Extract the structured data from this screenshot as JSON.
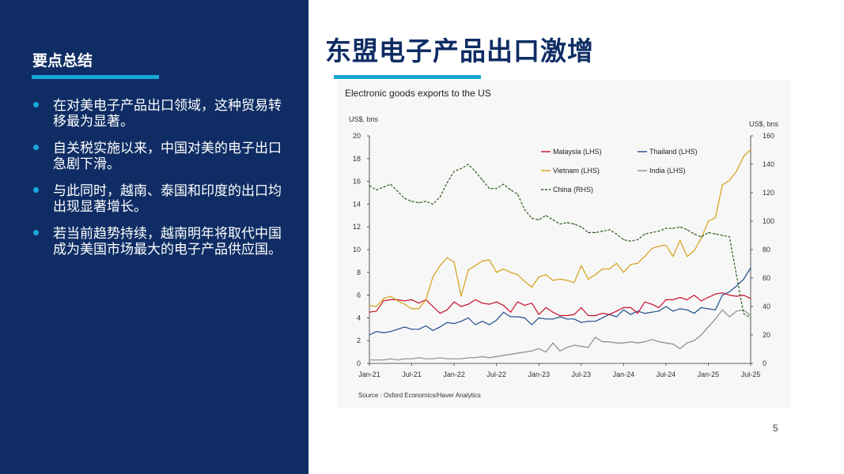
{
  "sidebar": {
    "title": "要点总结",
    "bullets": [
      "在对美电子产品出口领域，这种贸易转移最为显著。",
      "自关税实施以来，中国对美的电子出口急剧下滑。",
      "与此同时，越南、泰国和印度的出口均出现显著增长。",
      "若当前趋势持续，越南明年将取代中国成为美国市场最大的电子产品供应国。"
    ]
  },
  "header": {
    "title": "东盟电子产品出口激增"
  },
  "page_number": "5",
  "colors": {
    "sidebar_bg": "#0f2d64",
    "accent": "#17a7d8",
    "malaysia": "#c8102e",
    "thailand": "#1f4e8c",
    "vietnam": "#d4a017",
    "india": "#8c8c8c",
    "china": "#2d5a1e"
  },
  "chart_data": {
    "type": "line",
    "title": "Electronic goods exports to the US",
    "ylabel_left": "US$, bns",
    "ylabel_right": "US$, bns",
    "ylim_left": [
      0,
      20
    ],
    "ylim_right": [
      0,
      160
    ],
    "yticks_left": [
      0,
      2,
      4,
      6,
      8,
      10,
      12,
      14,
      16,
      18,
      20
    ],
    "yticks_right": [
      0,
      20,
      40,
      60,
      80,
      100,
      120,
      140,
      160
    ],
    "xtick_labels": [
      "Jan-21",
      "Jul-21",
      "Jan-22",
      "Jul-22",
      "Jan-23",
      "Jul-23",
      "Jan-24",
      "Jul-24",
      "Jan-25",
      "Jul-25"
    ],
    "xticks_index": [
      0,
      6,
      12,
      18,
      24,
      30,
      36,
      42,
      48,
      54
    ],
    "source": "Source : Oxford Economics/Haver Analytics",
    "series": [
      {
        "name": "Malaysia (LHS)",
        "axis": "left",
        "color": "#c8102e",
        "dash": false,
        "values": [
          4.5,
          4.6,
          5.5,
          5.6,
          5.6,
          5.5,
          5.6,
          5.3,
          5.6,
          5.0,
          4.4,
          4.7,
          5.4,
          5.0,
          5.2,
          5.6,
          5.3,
          5.2,
          5.4,
          5.1,
          4.5,
          5.4,
          5.1,
          5.3,
          4.3,
          4.9,
          4.5,
          4.2,
          4.2,
          4.3,
          4.9,
          4.2,
          4.2,
          4.4,
          4.3,
          4.6,
          4.9,
          4.9,
          4.4,
          5.4,
          5.2,
          4.9,
          5.6,
          5.6,
          5.8,
          5.6,
          6.0,
          5.5,
          5.8,
          6.1,
          6.2,
          6.0,
          5.9,
          6.0,
          5.7
        ]
      },
      {
        "name": "Thailand (LHS)",
        "axis": "left",
        "color": "#1f4e8c",
        "dash": false,
        "values": [
          2.5,
          2.8,
          2.7,
          2.8,
          3.0,
          3.2,
          3.0,
          3.0,
          3.3,
          2.9,
          3.2,
          3.6,
          3.5,
          3.7,
          4.0,
          3.4,
          3.7,
          3.4,
          3.8,
          4.5,
          4.1,
          4.1,
          4.0,
          3.4,
          4.0,
          3.9,
          3.9,
          4.1,
          3.9,
          3.9,
          3.6,
          3.7,
          3.7,
          4.0,
          4.3,
          4.1,
          4.7,
          4.3,
          4.6,
          4.4,
          4.5,
          4.6,
          5.0,
          4.6,
          4.8,
          4.7,
          4.4,
          4.9,
          4.8,
          4.7,
          6.0,
          6.3,
          6.8,
          7.4,
          8.4
        ]
      },
      {
        "name": "Vietnam (LHS)",
        "axis": "left",
        "color": "#d4a017",
        "dash": false,
        "values": [
          5.1,
          5.0,
          5.7,
          5.9,
          5.5,
          5.2,
          4.8,
          4.8,
          5.6,
          7.6,
          8.6,
          9.3,
          8.9,
          5.9,
          8.2,
          8.6,
          9.0,
          9.1,
          8.0,
          8.3,
          8.0,
          7.8,
          7.2,
          6.7,
          7.6,
          7.8,
          7.3,
          7.4,
          7.3,
          7.1,
          8.6,
          7.4,
          7.8,
          8.3,
          8.3,
          8.8,
          8.0,
          8.7,
          8.8,
          9.4,
          10.1,
          10.3,
          10.4,
          9.4,
          10.8,
          9.4,
          9.9,
          11.0,
          12.5,
          12.8,
          15.7,
          16.1,
          16.9,
          18.2,
          18.8
        ]
      },
      {
        "name": "India (LHS)",
        "axis": "left",
        "color": "#8c8c8c",
        "dash": false,
        "values": [
          0.3,
          0.3,
          0.3,
          0.4,
          0.3,
          0.4,
          0.4,
          0.5,
          0.4,
          0.4,
          0.5,
          0.4,
          0.4,
          0.4,
          0.5,
          0.5,
          0.6,
          0.5,
          0.6,
          0.7,
          0.8,
          0.9,
          1.0,
          1.1,
          1.3,
          1.0,
          1.8,
          1.1,
          1.4,
          1.6,
          1.5,
          1.4,
          2.3,
          1.9,
          1.9,
          1.8,
          1.8,
          1.9,
          1.8,
          1.9,
          2.1,
          1.9,
          1.8,
          1.7,
          1.3,
          1.8,
          2.0,
          2.5,
          3.2,
          3.9,
          4.7,
          4.1,
          4.6,
          4.7,
          4.2
        ]
      },
      {
        "name": "China (RHS)",
        "axis": "right",
        "color": "#2d5a1e",
        "dash": true,
        "values": [
          125,
          122,
          124,
          126,
          121,
          116,
          114,
          113,
          114,
          112,
          117,
          127,
          135,
          137,
          140,
          135,
          129,
          123,
          123,
          126,
          122,
          119,
          108,
          102,
          101,
          104,
          101,
          98,
          99,
          98,
          96,
          92,
          92,
          93,
          94,
          91,
          87,
          86,
          87,
          91,
          92,
          93,
          95,
          95,
          96,
          94,
          91,
          89,
          92,
          91,
          90,
          89,
          62,
          35,
          32
        ]
      }
    ]
  }
}
